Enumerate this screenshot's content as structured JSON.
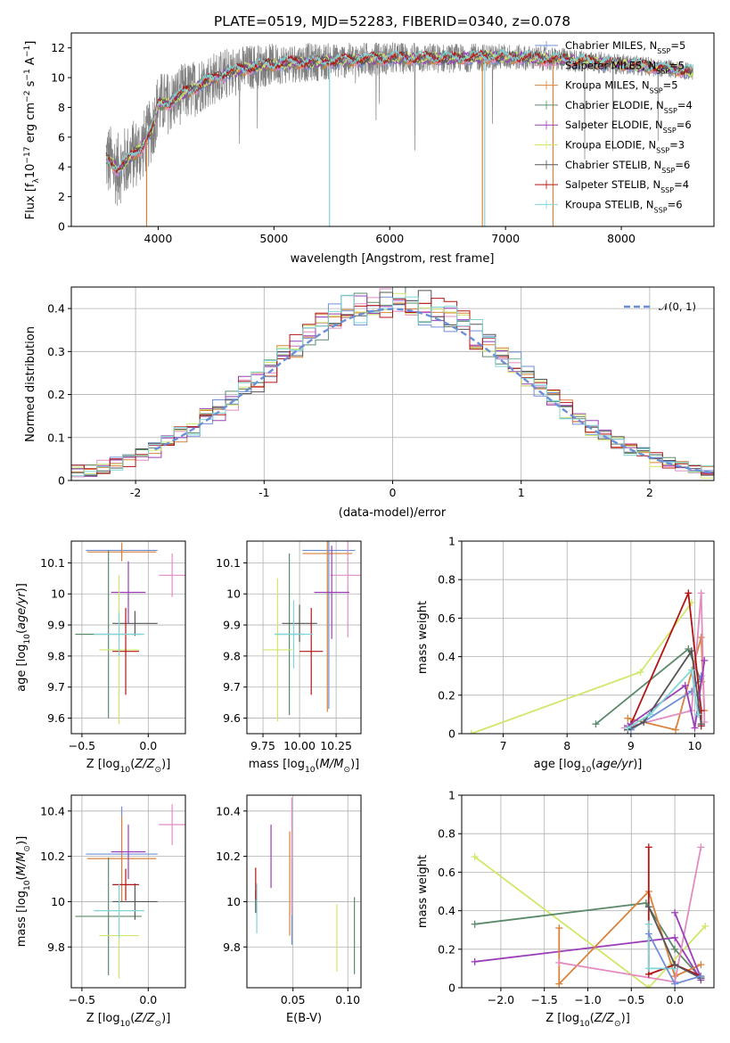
{
  "colors": {
    "Chabrier MILES": "#6f8fd6",
    "Salpeter MILES": "#e38cc0",
    "Kroupa MILES": "#d9823b",
    "Chabrier ELODIE": "#5b8a6a",
    "Salpeter ELODIE": "#9a3fb8",
    "Kroupa ELODIE": "#cfe86a",
    "Chabrier STELIB": "#555555",
    "Salpeter STELIB": "#b31414",
    "Kroupa STELIB": "#7fd6d8"
  },
  "chart_data": [
    {
      "id": "spectrum",
      "type": "line",
      "title": "PLATE=0519, MJD=52283, FIBERID=0340, z=0.078",
      "xlabel": "wavelength [Angstrom, rest frame]",
      "ylabel": "Flux [fλ10⁻¹⁷ erg cm⁻² s⁻¹ A⁻¹]",
      "xlim": [
        3250,
        8800
      ],
      "ylim": [
        0,
        13
      ],
      "xticks": [
        4000,
        5000,
        6000,
        7000,
        8000
      ],
      "yticks": [
        0,
        2,
        4,
        6,
        8,
        10,
        12
      ],
      "legend_position": "top-right",
      "continuum": [
        [
          3550,
          4.6
        ],
        [
          3650,
          3.8
        ],
        [
          3750,
          4.6
        ],
        [
          3850,
          5.2
        ],
        [
          3950,
          6.6
        ],
        [
          4000,
          8.2
        ],
        [
          4100,
          8.3
        ],
        [
          4200,
          8.9
        ],
        [
          4300,
          9.2
        ],
        [
          4400,
          9.7
        ],
        [
          4500,
          10.0
        ],
        [
          4600,
          10.3
        ],
        [
          4800,
          10.7
        ],
        [
          5000,
          10.9
        ],
        [
          5200,
          11.0
        ],
        [
          5500,
          11.1
        ],
        [
          6000,
          11.3
        ],
        [
          6500,
          11.3
        ],
        [
          7000,
          11.4
        ],
        [
          7500,
          11.2
        ],
        [
          8000,
          10.9
        ],
        [
          8300,
          10.7
        ],
        [
          8600,
          10.4
        ]
      ],
      "observed_noise": [
        [
          3550,
          2.6
        ],
        [
          4000,
          2.2
        ],
        [
          4500,
          1.8
        ],
        [
          5000,
          1.4
        ],
        [
          6000,
          1.1
        ],
        [
          7000,
          0.9
        ],
        [
          8000,
          0.7
        ],
        [
          8600,
          0.6
        ]
      ],
      "model_dips": [
        {
          "series": "Kroupa MILES",
          "x": 3900,
          "y": 0
        },
        {
          "series": "Kroupa ELODIE",
          "x": 4030,
          "y": 8.5
        },
        {
          "series": "Kroupa STELIB",
          "x": 5480,
          "y": 0
        },
        {
          "series": "Kroupa MILES",
          "x": 6800,
          "y": 0
        },
        {
          "series": "Kroupa STELIB",
          "x": 6820,
          "y": 0
        },
        {
          "series": "Kroupa MILES",
          "x": 7410,
          "y": 0
        }
      ],
      "legend": [
        {
          "series": "Chabrier MILES",
          "label": "Chabrier MILES, N",
          "sub": "SSP",
          "val": "=5"
        },
        {
          "series": "Salpeter MILES",
          "label": "Salpeter MILES, N",
          "sub": "SSP",
          "val": "=5"
        },
        {
          "series": "Kroupa MILES",
          "label": "Kroupa MILES, N",
          "sub": "SSP",
          "val": "=5"
        },
        {
          "series": "Chabrier ELODIE",
          "label": "Chabrier ELODIE, N",
          "sub": "SSP",
          "val": "=4"
        },
        {
          "series": "Salpeter ELODIE",
          "label": "Salpeter ELODIE, N",
          "sub": "SSP",
          "val": "=6"
        },
        {
          "series": "Kroupa ELODIE",
          "label": "Kroupa ELODIE, N",
          "sub": "SSP",
          "val": "=3"
        },
        {
          "series": "Chabrier STELIB",
          "label": "Chabrier STELIB, N",
          "sub": "SSP",
          "val": "=6"
        },
        {
          "series": "Salpeter STELIB",
          "label": "Salpeter STELIB, N",
          "sub": "SSP",
          "val": "=4"
        },
        {
          "series": "Kroupa STELIB",
          "label": "Kroupa STELIB, N",
          "sub": "SSP",
          "val": "=6"
        }
      ]
    },
    {
      "id": "residuals",
      "type": "histogram",
      "xlabel": "(data-model)/error",
      "ylabel": "Normed distribution",
      "xlim": [
        -2.5,
        2.5
      ],
      "ylim": [
        0,
        0.45
      ],
      "xticks": [
        -2,
        -1,
        0,
        1,
        2
      ],
      "yticks": [
        0.0,
        0.1,
        0.2,
        0.3,
        0.4
      ],
      "legend": "𝒩(0, 1)",
      "legend_position": "top-right",
      "bin_width": 0.1,
      "histogram_series": [
        "Chabrier MILES",
        "Salpeter MILES",
        "Kroupa MILES",
        "Chabrier ELODIE",
        "Salpeter ELODIE",
        "Kroupa ELODIE",
        "Chabrier STELIB",
        "Salpeter STELIB",
        "Kroupa STELIB"
      ],
      "gaussian": {
        "mean": 0,
        "sigma": 1,
        "xrange": [
          -1.85,
          2.5
        ]
      }
    },
    {
      "id": "age_vs_Z",
      "type": "errorbar",
      "xlabel": "Z [log₁₀(Z/Z⊙)]",
      "ylabel": "age  [log₁₀(age/yr)]",
      "xlim": [
        -0.58,
        0.28
      ],
      "ylim": [
        9.55,
        10.17
      ],
      "xticks": [
        -0.5,
        0.0
      ],
      "xticklabels": [
        "−0.5",
        "0.0"
      ],
      "yticks": [
        9.6,
        9.7,
        9.8,
        9.9,
        10.0,
        10.1
      ],
      "points": [
        {
          "series": "Chabrier MILES",
          "x": -0.2,
          "xerr": 0.27,
          "y": 10.14,
          "yerr": 0.02
        },
        {
          "series": "Salpeter MILES",
          "x": 0.18,
          "xerr": 0.1,
          "y": 10.06,
          "yerr": 0.07
        },
        {
          "series": "Kroupa MILES",
          "x": -0.2,
          "xerr": 0.26,
          "y": 10.135,
          "yerr": 0.03
        },
        {
          "series": "Chabrier ELODIE",
          "x": -0.3,
          "xerr": 0.25,
          "y": 9.87,
          "yerr": 0.27
        },
        {
          "series": "Salpeter ELODIE",
          "x": -0.15,
          "xerr": 0.13,
          "y": 10.005,
          "yerr": 0.1
        },
        {
          "series": "Kroupa ELODIE",
          "x": -0.22,
          "xerr": 0.15,
          "y": 9.82,
          "yerr": 0.24
        },
        {
          "series": "Chabrier STELIB",
          "x": -0.1,
          "xerr": 0.17,
          "y": 9.905,
          "yerr": 0.04
        },
        {
          "series": "Salpeter STELIB",
          "x": -0.17,
          "xerr": 0.1,
          "y": 9.815,
          "yerr": 0.14
        },
        {
          "series": "Kroupa STELIB",
          "x": -0.22,
          "xerr": 0.19,
          "y": 9.87,
          "yerr": 0.07
        }
      ]
    },
    {
      "id": "age_vs_mass",
      "type": "errorbar",
      "xlabel": "mass [log₁₀(M/M⊙)]",
      "ylabel": "",
      "xlim": [
        9.64,
        10.42
      ],
      "ylim": [
        9.55,
        10.17
      ],
      "xticks": [
        9.75,
        10.0,
        10.25
      ],
      "xticklabels": [
        "9.75",
        "10.00",
        "10.25"
      ],
      "yticks": [
        9.6,
        9.7,
        9.8,
        9.9,
        10.0,
        10.1
      ],
      "points": [
        {
          "series": "Chabrier MILES",
          "x": 10.2,
          "xerr": 0.18,
          "y": 10.14,
          "yerr": 0.51
        },
        {
          "series": "Salpeter MILES",
          "x": 10.33,
          "xerr": 0.12,
          "y": 10.06,
          "yerr": 0.2
        },
        {
          "series": "Kroupa MILES",
          "x": 10.19,
          "xerr": 0.17,
          "y": 10.13,
          "yerr": 0.51
        },
        {
          "series": "Chabrier ELODIE",
          "x": 9.93,
          "xerr": 0.1,
          "y": 9.87,
          "yerr": 0.26
        },
        {
          "series": "Salpeter ELODIE",
          "x": 10.22,
          "xerr": 0.12,
          "y": 10.005,
          "yerr": 0.15
        },
        {
          "series": "Kroupa ELODIE",
          "x": 9.85,
          "xerr": 0.1,
          "y": 9.82,
          "yerr": 0.23
        },
        {
          "series": "Chabrier STELIB",
          "x": 10.0,
          "xerr": 0.12,
          "y": 9.905,
          "yerr": 0.06
        },
        {
          "series": "Salpeter STELIB",
          "x": 10.08,
          "xerr": 0.08,
          "y": 9.815,
          "yerr": 0.14
        },
        {
          "series": "Kroupa STELIB",
          "x": 9.96,
          "xerr": 0.13,
          "y": 9.87,
          "yerr": 0.11
        }
      ]
    },
    {
      "id": "weight_vs_age",
      "type": "line",
      "xlabel": "age  [log₁₀(age/yr)]",
      "ylabel": "mass weight",
      "xlim": [
        6.35,
        10.3
      ],
      "ylim": [
        0,
        1
      ],
      "xticks": [
        7,
        8,
        9,
        10
      ],
      "yticks": [
        0.0,
        0.2,
        0.4,
        0.6,
        0.8,
        1.0
      ],
      "series": [
        {
          "name": "Kroupa ELODIE",
          "x": [
            6.5,
            9.15,
            9.95
          ],
          "y": [
            0.0,
            0.32,
            0.68
          ]
        },
        {
          "name": "Chabrier ELODIE",
          "x": [
            8.45,
            9.9,
            10.1,
            10.05
          ],
          "y": [
            0.05,
            0.44,
            0.27,
            0.2
          ]
        },
        {
          "name": "Kroupa MILES",
          "x": [
            8.95,
            9.7,
            10.1,
            10.15
          ],
          "y": [
            0.08,
            0.02,
            0.5,
            0.12
          ]
        },
        {
          "name": "Chabrier MILES",
          "x": [
            9.0,
            9.95,
            10.1
          ],
          "y": [
            0.02,
            0.22,
            0.3
          ]
        },
        {
          "name": "Salpeter MILES",
          "x": [
            8.9,
            9.95,
            10.1,
            10.15
          ],
          "y": [
            0.03,
            0.12,
            0.73,
            0.06
          ]
        },
        {
          "name": "Salpeter STELIB",
          "x": [
            9.0,
            9.9,
            10.1,
            10.1
          ],
          "y": [
            0.05,
            0.73,
            0.12,
            0.04
          ]
        },
        {
          "name": "Salpeter ELODIE",
          "x": [
            8.95,
            9.85,
            10.0,
            10.15
          ],
          "y": [
            0.04,
            0.25,
            0.03,
            0.38
          ]
        },
        {
          "name": "Chabrier STELIB",
          "x": [
            8.95,
            9.2,
            9.95,
            10.1
          ],
          "y": [
            0.02,
            0.06,
            0.43,
            0.05
          ]
        },
        {
          "name": "Kroupa STELIB",
          "x": [
            8.95,
            9.3,
            9.95,
            10.05
          ],
          "y": [
            0.03,
            0.1,
            0.33,
            0.1
          ]
        }
      ]
    },
    {
      "id": "mass_vs_Z",
      "type": "errorbar",
      "xlabel": "Z [log₁₀(Z/Z⊙)]",
      "ylabel": "mass [log₁₀(M/M⊙)]",
      "xlim": [
        -0.58,
        0.28
      ],
      "ylim": [
        9.62,
        10.47
      ],
      "xticks": [
        -0.5,
        0.0
      ],
      "xticklabels": [
        "−0.5",
        "0.0"
      ],
      "yticks": [
        9.8,
        10.0,
        10.2,
        10.4
      ],
      "points": [
        {
          "series": "Chabrier MILES",
          "x": -0.2,
          "xerr": 0.27,
          "y": 10.21,
          "yerr": 0.21
        },
        {
          "series": "Salpeter MILES",
          "x": 0.18,
          "xerr": 0.1,
          "y": 10.34,
          "yerr": 0.09
        },
        {
          "series": "Kroupa MILES",
          "x": -0.2,
          "xerr": 0.26,
          "y": 10.19,
          "yerr": 0.19
        },
        {
          "series": "Chabrier ELODIE",
          "x": -0.3,
          "xerr": 0.25,
          "y": 9.935,
          "yerr": 0.26
        },
        {
          "series": "Salpeter ELODIE",
          "x": -0.15,
          "xerr": 0.13,
          "y": 10.22,
          "yerr": 0.12
        },
        {
          "series": "Kroupa ELODIE",
          "x": -0.22,
          "xerr": 0.15,
          "y": 9.85,
          "yerr": 0.19
        },
        {
          "series": "Chabrier STELIB",
          "x": -0.1,
          "xerr": 0.17,
          "y": 10.0,
          "yerr": 0.08
        },
        {
          "series": "Salpeter STELIB",
          "x": -0.17,
          "xerr": 0.1,
          "y": 10.075,
          "yerr": 0.07
        },
        {
          "series": "Kroupa STELIB",
          "x": -0.22,
          "xerr": 0.19,
          "y": 9.96,
          "yerr": 0.12
        }
      ]
    },
    {
      "id": "mass_vs_EBV",
      "type": "errorbar",
      "xlabel": "E(B-V)",
      "ylabel": "",
      "xlim": [
        0.008,
        0.112
      ],
      "ylim": [
        9.62,
        10.47
      ],
      "xticks": [
        0.05,
        0.1
      ],
      "xticklabels": [
        "0.05",
        "0.10"
      ],
      "yticks": [
        9.8,
        10.0,
        10.2,
        10.4
      ],
      "points": [
        {
          "series": "Chabrier MILES",
          "x": 0.049,
          "y": 10.0,
          "yerr": 0.19
        },
        {
          "series": "Salpeter MILES",
          "x": 0.049,
          "y": 10.2,
          "yerr": 0.26
        },
        {
          "series": "Kroupa MILES",
          "x": 0.047,
          "y": 10.08,
          "yerr": 0.23
        },
        {
          "series": "Chabrier ELODIE",
          "x": 0.106,
          "y": 9.85,
          "yerr": 0.17
        },
        {
          "series": "Salpeter ELODIE",
          "x": 0.03,
          "y": 10.2,
          "yerr": 0.14
        },
        {
          "series": "Kroupa ELODIE",
          "x": 0.09,
          "y": 9.84,
          "yerr": 0.15
        },
        {
          "series": "Chabrier STELIB",
          "x": 0.016,
          "y": 10.0,
          "yerr": 0.05
        },
        {
          "series": "Salpeter STELIB",
          "x": 0.016,
          "y": 10.08,
          "yerr": 0.07
        },
        {
          "series": "Kroupa STELIB",
          "x": 0.017,
          "y": 9.97,
          "yerr": 0.11
        }
      ]
    },
    {
      "id": "weight_vs_Z",
      "type": "line",
      "xlabel": "Z [log₁₀(Z/Z⊙)]",
      "ylabel": "mass weight",
      "xlim": [
        -2.45,
        0.45
      ],
      "ylim": [
        0,
        1
      ],
      "xticks": [
        -2.0,
        -1.5,
        -1.0,
        -0.5,
        0.0
      ],
      "xticklabels": [
        "−2.0",
        "−1.5",
        "−1.0",
        "−0.5",
        "0.0"
      ],
      "yticks": [
        0.0,
        0.2,
        0.4,
        0.6,
        0.8,
        1.0
      ],
      "series": [
        {
          "name": "Kroupa ELODIE",
          "x": [
            -2.3,
            -0.3,
            0.35
          ],
          "y": [
            0.68,
            0.0,
            0.32
          ]
        },
        {
          "name": "Chabrier ELODIE",
          "x": [
            -2.3,
            -0.33,
            0.0,
            0.3
          ],
          "y": [
            0.33,
            0.44,
            0.2,
            0.05
          ]
        },
        {
          "name": "Salpeter ELODIE",
          "x": [
            -2.3,
            0.0,
            0.3
          ],
          "y": [
            0.135,
            0.26,
            0.04
          ]
        },
        {
          "name": "Kroupa MILES",
          "x": [
            -1.33,
            -1.33,
            -0.3,
            0.0,
            0.3
          ],
          "y": [
            0.31,
            0.02,
            0.5,
            0.06,
            0.12
          ]
        },
        {
          "name": "Salpeter MILES",
          "x": [
            -1.33,
            0.0,
            0.3
          ],
          "y": [
            0.13,
            0.03,
            0.73
          ]
        },
        {
          "name": "Salpeter STELIB",
          "x": [
            -0.3,
            -0.3,
            0.0,
            0.3
          ],
          "y": [
            0.73,
            0.07,
            0.12,
            0.06
          ]
        },
        {
          "name": "Salpeter ELODIE",
          "x": [
            0.0,
            0.3
          ],
          "y": [
            0.39,
            0.05
          ]
        },
        {
          "name": "Kroupa STELIB",
          "x": [
            -0.3,
            -0.3,
            0.0
          ],
          "y": [
            0.33,
            0.1,
            0.1
          ]
        },
        {
          "name": "Chabrier STELIB",
          "x": [
            -0.3,
            0.0,
            0.3
          ],
          "y": [
            0.42,
            0.12,
            0.05
          ]
        },
        {
          "name": "Chabrier MILES",
          "x": [
            -0.3,
            0.0,
            0.3
          ],
          "y": [
            0.28,
            0.02,
            0.06
          ]
        }
      ]
    }
  ]
}
